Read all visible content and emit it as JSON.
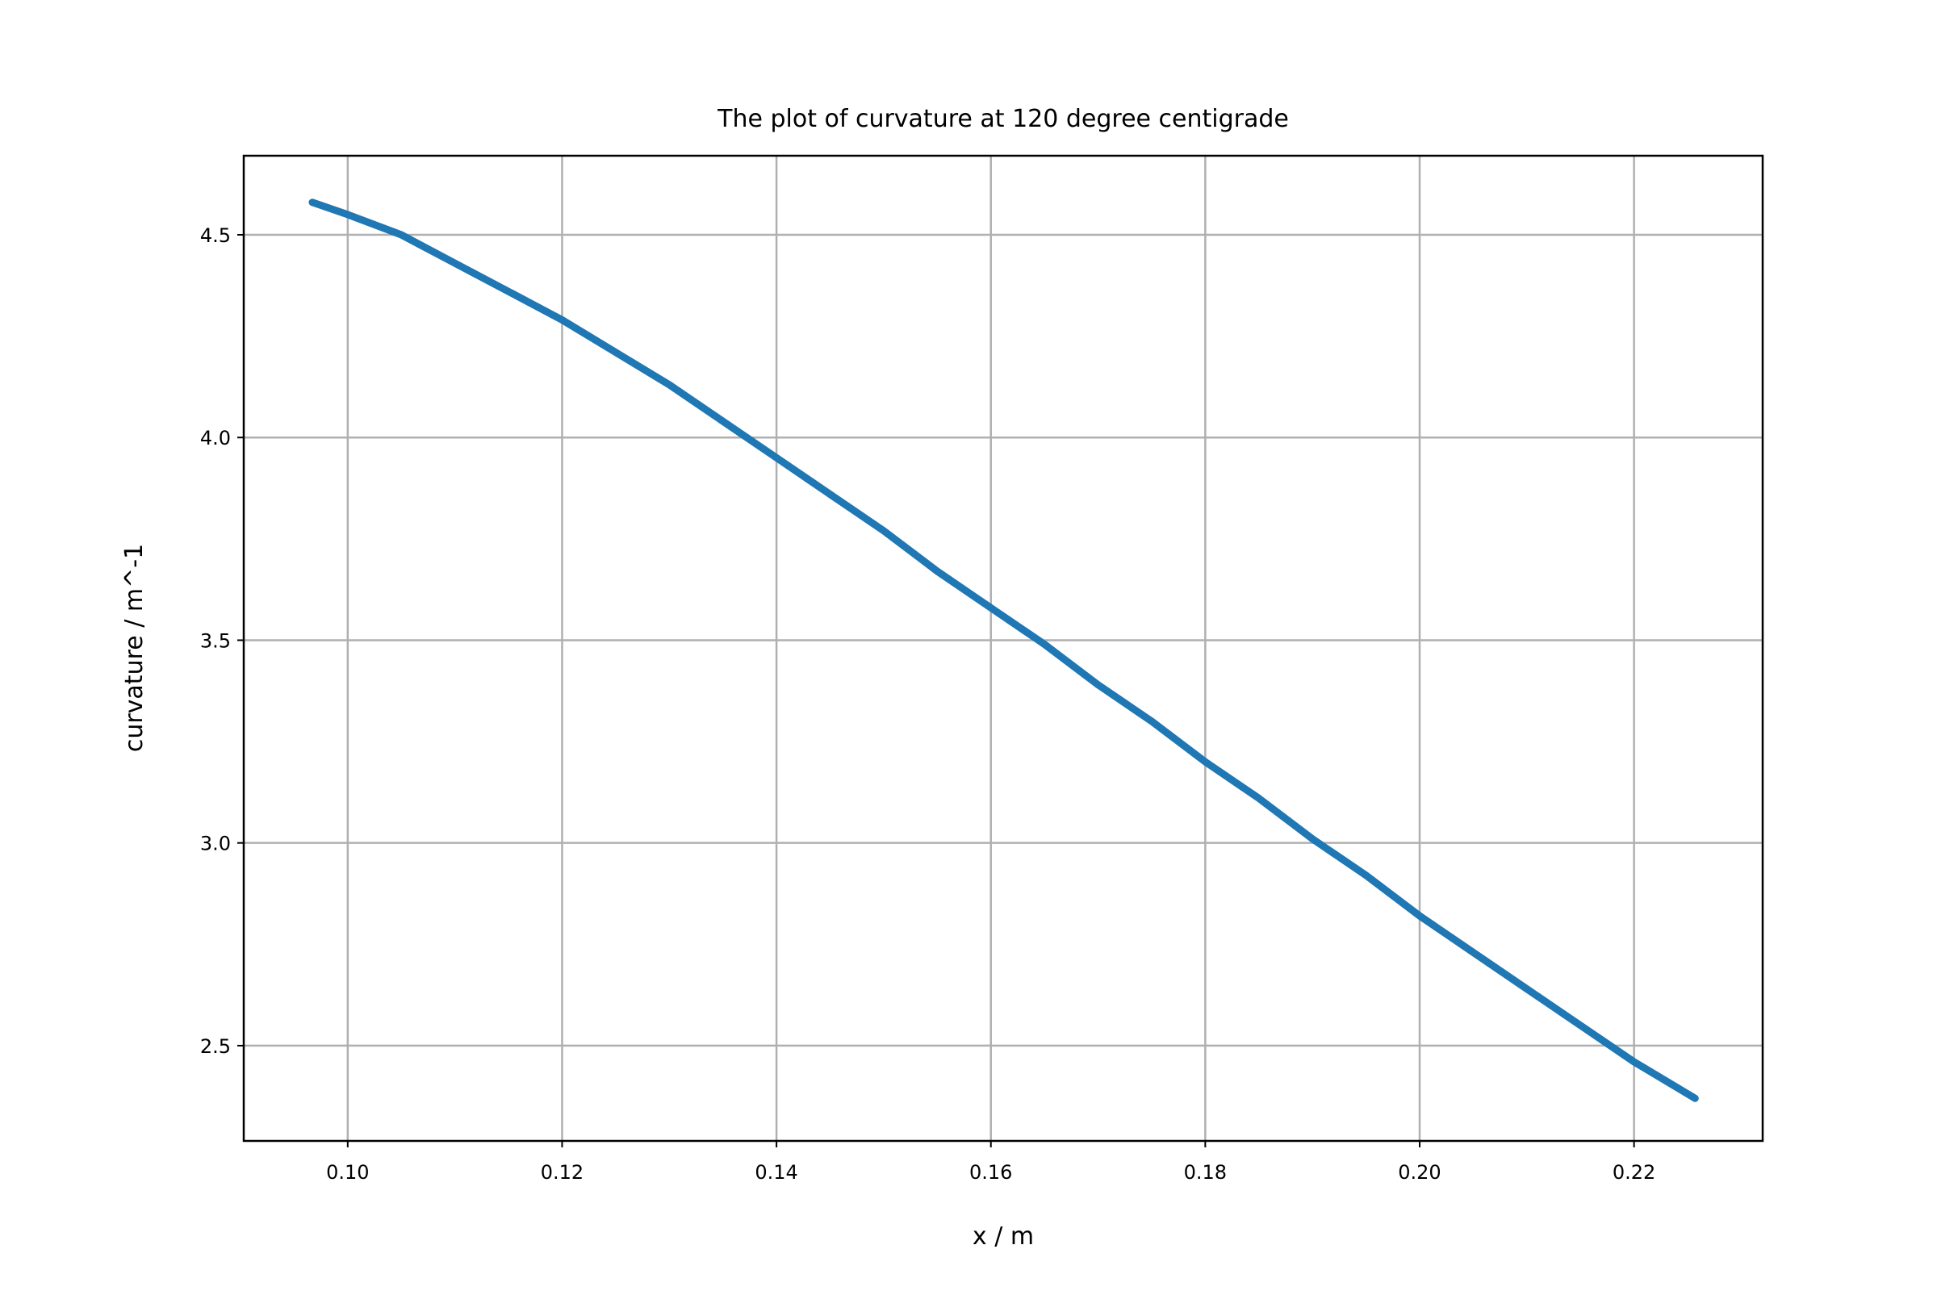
{
  "chart_data": {
    "type": "line",
    "title": "The plot of curvature at 120 degree centigrade",
    "xlabel": "x / m",
    "ylabel": "curvature / m^-1",
    "xlim": [
      0.0903,
      0.232
    ],
    "ylim": [
      2.265,
      4.695
    ],
    "xticks": [
      "0.10",
      "0.12",
      "0.14",
      "0.16",
      "0.18",
      "0.20",
      "0.22"
    ],
    "yticks": [
      "2.5",
      "3.0",
      "3.5",
      "4.0",
      "4.5"
    ],
    "grid": true,
    "series": [
      {
        "color": "#1f77b4",
        "x": [
          0.0967,
          0.1,
          0.105,
          0.11,
          0.115,
          0.12,
          0.125,
          0.13,
          0.135,
          0.14,
          0.145,
          0.15,
          0.155,
          0.16,
          0.165,
          0.17,
          0.175,
          0.18,
          0.185,
          0.19,
          0.195,
          0.2,
          0.205,
          0.21,
          0.215,
          0.22,
          0.2257
        ],
        "y": [
          4.58,
          4.55,
          4.5,
          4.43,
          4.36,
          4.29,
          4.21,
          4.13,
          4.04,
          3.95,
          3.86,
          3.77,
          3.67,
          3.58,
          3.49,
          3.39,
          3.3,
          3.2,
          3.11,
          3.01,
          2.92,
          2.82,
          2.73,
          2.64,
          2.55,
          2.46,
          2.37
        ]
      }
    ]
  }
}
